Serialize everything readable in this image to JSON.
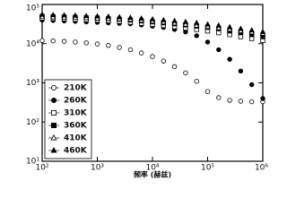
{
  "chart_data": {
    "type": "scatter",
    "xlabel": "频率 (赫兹)",
    "xscale": "log",
    "yscale": "log",
    "xlim": [
      100,
      1000000
    ],
    "ylim": [
      10,
      100000
    ],
    "xticks": [
      {
        "value": 100,
        "label": "10²"
      },
      {
        "value": 1000,
        "label": "10³"
      },
      {
        "value": 10000,
        "label": "10⁴"
      },
      {
        "value": 100000,
        "label": "10⁵"
      },
      {
        "value": 1000000,
        "label": "10⁶"
      }
    ],
    "yticks": [
      {
        "value": 10,
        "label": "10¹"
      },
      {
        "value": 100,
        "label": "10²"
      },
      {
        "value": 1000,
        "label": "10³"
      },
      {
        "value": 10000,
        "label": "10⁴"
      },
      {
        "value": 100000,
        "label": "10⁵"
      }
    ],
    "legend": "lower left",
    "x": [
      100,
      158,
      251,
      398,
      631,
      1000,
      1585,
      2512,
      3981,
      6310,
      10000,
      15849,
      25119,
      39811,
      63096,
      100000,
      158489,
      251189,
      398107,
      630957,
      1000000
    ],
    "series": [
      {
        "name": "210K",
        "marker": "circle",
        "filled": false,
        "color": "#000000",
        "values": [
          12000,
          11800,
          11500,
          11000,
          10500,
          9800,
          9000,
          8000,
          7000,
          5800,
          4700,
          3600,
          2600,
          1800,
          1100,
          600,
          420,
          360,
          340,
          330,
          330
        ]
      },
      {
        "name": "260K",
        "marker": "circle",
        "filled": true,
        "color": "#000000",
        "values": [
          40000,
          39000,
          38000,
          37000,
          36000,
          35000,
          34000,
          33000,
          32000,
          30000,
          28000,
          26000,
          23000,
          20000,
          16000,
          11000,
          7000,
          4000,
          2000,
          900,
          400
        ]
      },
      {
        "name": "310K",
        "marker": "square",
        "filled": false,
        "color": "#000000",
        "values": [
          45000,
          44000,
          43000,
          42000,
          41000,
          40000,
          38500,
          37000,
          35000,
          33000,
          31000,
          29000,
          27000,
          25000,
          23000,
          21000,
          19000,
          17000,
          15000,
          13500,
          12000
        ]
      },
      {
        "name": "360K",
        "marker": "square",
        "filled": true,
        "color": "#000000",
        "values": [
          50000,
          49000,
          48000,
          47000,
          46000,
          45000,
          43500,
          42000,
          40000,
          38000,
          36000,
          34000,
          32000,
          30000,
          28000,
          26000,
          24000,
          21000,
          19000,
          17000,
          15000
        ]
      },
      {
        "name": "410K",
        "marker": "triangle",
        "filled": false,
        "color": "#000000",
        "values": [
          48000,
          47000,
          46500,
          46000,
          45000,
          44000,
          43000,
          42000,
          41000,
          39000,
          37000,
          35000,
          33000,
          31000,
          29000,
          27000,
          25000,
          23000,
          21000,
          19500,
          18000
        ]
      },
      {
        "name": "460K",
        "marker": "triangle",
        "filled": true,
        "color": "#000000",
        "values": [
          55000,
          54000,
          53000,
          52000,
          51000,
          50000,
          49000,
          47500,
          46000,
          44000,
          42000,
          40000,
          38000,
          36000,
          34000,
          31000,
          29000,
          26500,
          24000,
          22000,
          20000
        ]
      }
    ]
  }
}
